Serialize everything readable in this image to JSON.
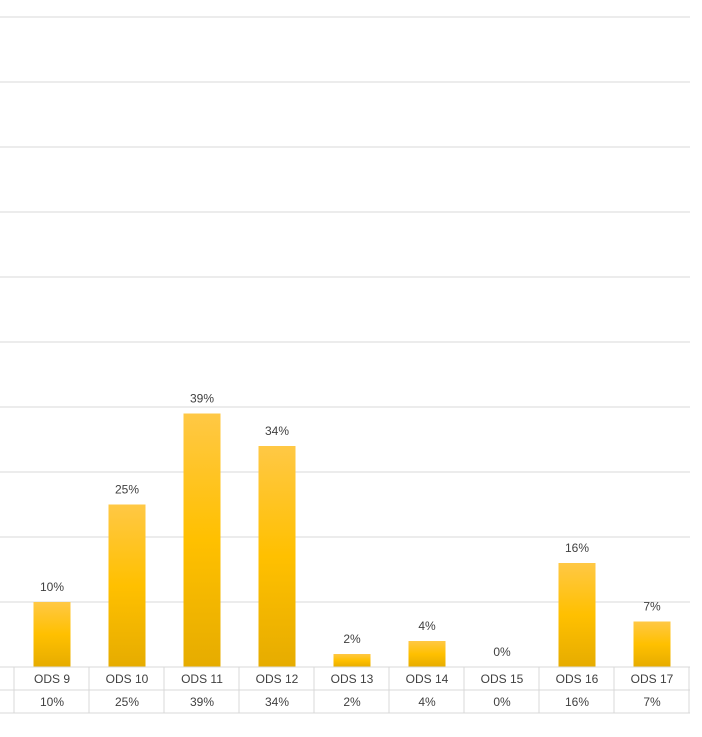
{
  "chart_data": {
    "type": "bar",
    "categories": [
      "ODS 9",
      "ODS 10",
      "ODS 11",
      "ODS 12",
      "ODS 13",
      "ODS 14",
      "ODS 15",
      "ODS 16",
      "ODS 17"
    ],
    "values": [
      10,
      25,
      39,
      34,
      2,
      4,
      0,
      16,
      7
    ],
    "value_labels": [
      "10%",
      "25%",
      "39%",
      "34%",
      "2%",
      "4%",
      "0%",
      "16%",
      "7%"
    ],
    "table_values": [
      "10%",
      "25%",
      "39%",
      "34%",
      "2%",
      "4%",
      "0%",
      "16%",
      "7%"
    ],
    "ylim": [
      0,
      50
    ],
    "unit": "%",
    "grid": true,
    "colors": {
      "bar_top": "#FFC845",
      "bar_mid": "#FFC000",
      "bar_bottom": "#E6AC00",
      "grid": "#D9D9D9",
      "text": "#404040"
    }
  }
}
